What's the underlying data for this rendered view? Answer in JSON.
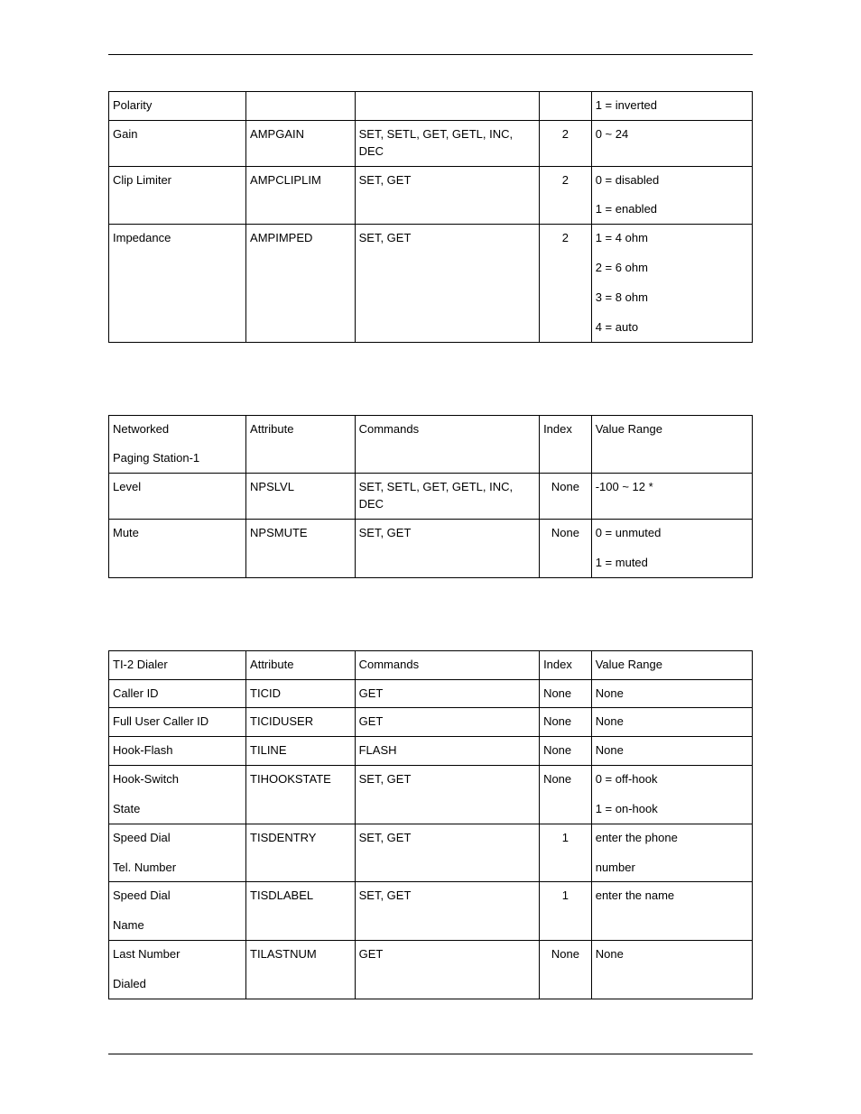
{
  "tables": [
    {
      "columns": [
        "c1",
        "c2",
        "c3",
        "c4",
        "c5"
      ],
      "rows": [
        {
          "c1": "Polarity",
          "c2": "",
          "c3": "",
          "c4": "",
          "idxAlign": "blank",
          "c5": [
            "1 = inverted"
          ]
        },
        {
          "c1": "Gain",
          "c2": "AMPGAIN",
          "c3": "SET, SETL, GET, GETL, INC, DEC",
          "c4": "2",
          "idxAlign": "center",
          "c5": [
            "0 ~ 24"
          ]
        },
        {
          "c1": "Clip Limiter",
          "c2": "AMPCLIPLIM",
          "c3": "SET, GET",
          "c4": "2",
          "idxAlign": "center",
          "c5": [
            "0 = disabled",
            "1 = enabled"
          ]
        },
        {
          "c1": "Impedance",
          "c2": "AMPIMPED",
          "c3": "SET, GET",
          "c4": "2",
          "idxAlign": "center",
          "c5": [
            "1 = 4 ohm",
            "2 = 6 ohm",
            "3 = 8 ohm",
            "4 = auto"
          ]
        }
      ]
    },
    {
      "columns": [
        "c1",
        "c2",
        "c3",
        "c4",
        "c5"
      ],
      "rows": [
        {
          "c1": [
            "Networked",
            "Paging Station-1"
          ],
          "c2": "Attribute",
          "c3": "Commands",
          "c4": "Index",
          "idxAlign": "left",
          "c5": [
            "Value Range"
          ]
        },
        {
          "c1": "Level",
          "c2": "NPSLVL",
          "c3": "SET, SETL, GET, GETL, INC, DEC",
          "c4": "None",
          "idxAlign": "center",
          "c5": [
            "-100 ~ 12 *"
          ]
        },
        {
          "c1": "Mute",
          "c2": "NPSMUTE",
          "c3": "SET, GET",
          "c4": "None",
          "idxAlign": "center",
          "c5": [
            "0 = unmuted",
            "1 = muted"
          ]
        }
      ]
    },
    {
      "columns": [
        "c1",
        "c2",
        "c3",
        "c4",
        "c5"
      ],
      "rows": [
        {
          "c1": "TI-2 Dialer",
          "c2": "Attribute",
          "c3": "Commands",
          "c4": "Index",
          "idxAlign": "left",
          "c5": [
            "Value Range"
          ]
        },
        {
          "c1": "Caller ID",
          "c2": "TICID",
          "c3": "GET",
          "c4": "None",
          "idxAlign": "left",
          "c5": [
            "None"
          ]
        },
        {
          "c1": "Full User Caller ID",
          "c2": "TICIDUSER",
          "c3": "GET",
          "c4": "None",
          "idxAlign": "left",
          "c5": [
            "None"
          ]
        },
        {
          "c1": "Hook-Flash",
          "c2": "TILINE",
          "c3": "FLASH",
          "c4": "None",
          "idxAlign": "left",
          "c5": [
            "None"
          ]
        },
        {
          "c1": [
            "Hook-Switch",
            "State"
          ],
          "c2": "TIHOOKSTATE",
          "c3": "SET,  GET",
          "c4": "None",
          "idxAlign": "left",
          "c5": [
            "0 = off-hook",
            "1 = on-hook"
          ]
        },
        {
          "c1": [
            "Speed Dial",
            "Tel. Number"
          ],
          "c2": "TISDENTRY",
          "c3": "SET, GET",
          "c4": "1",
          "idxAlign": "center",
          "c5": [
            "enter the phone",
            "number"
          ],
          "c5tight": true
        },
        {
          "c1": [
            "Speed Dial",
            "Name"
          ],
          "c2": "TISDLABEL",
          "c3": "SET, GET",
          "c4": "1",
          "idxAlign": "center",
          "c5": [
            "enter the name"
          ]
        },
        {
          "c1": [
            "Last Number",
            "Dialed"
          ],
          "c2": "TILASTNUM",
          "c3": "GET",
          "c4": "None",
          "idxAlign": "center",
          "c5": [
            "None"
          ]
        }
      ]
    }
  ]
}
